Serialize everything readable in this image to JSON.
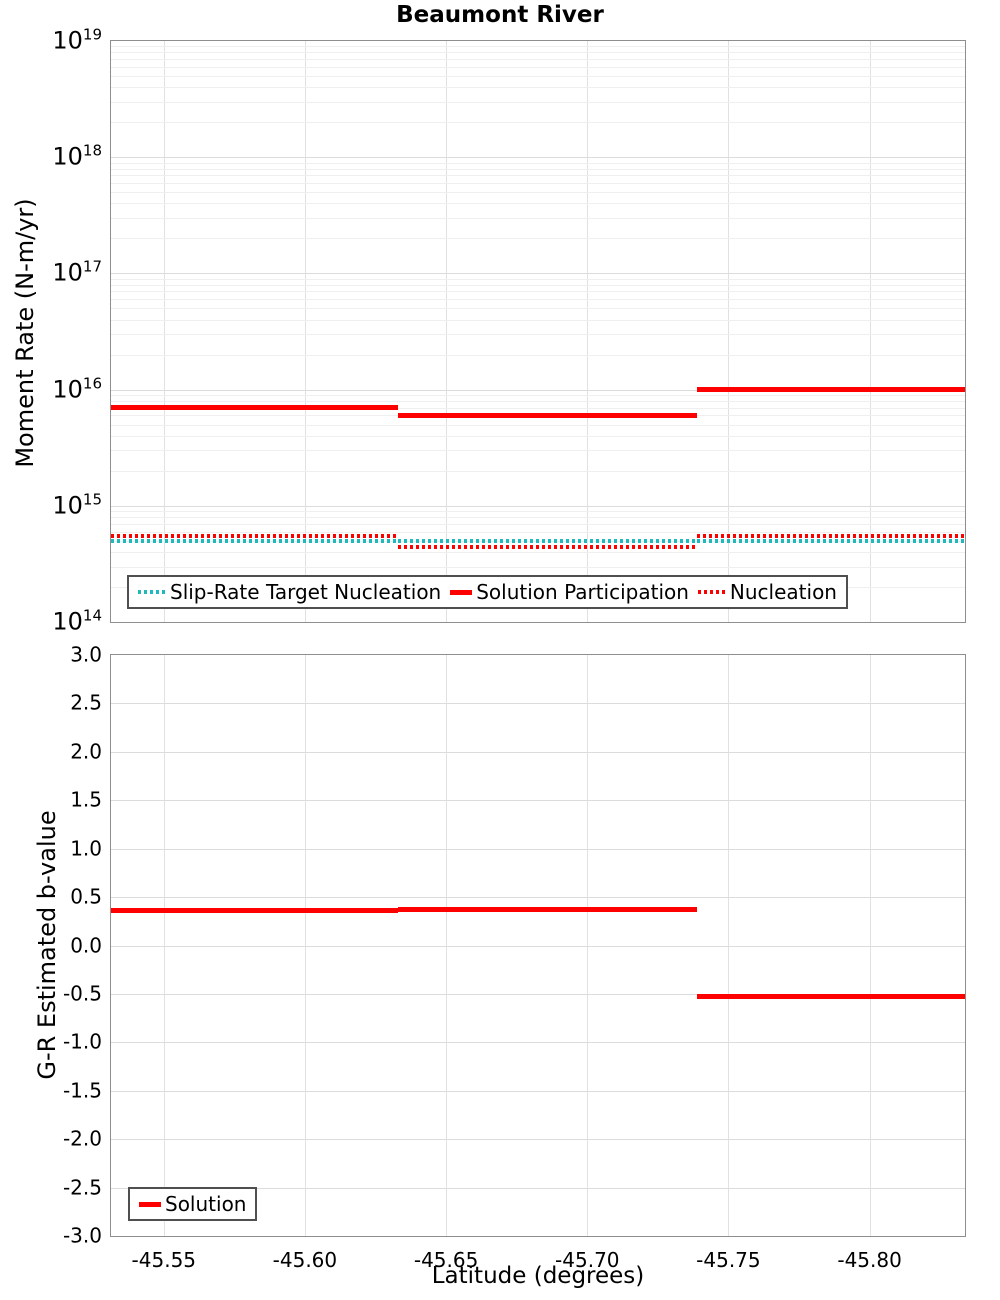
{
  "chart_data": {
    "title": "Beaumont River",
    "type": "line",
    "charts": [
      {
        "id": "moment",
        "ylabel": "Moment Rate (N-m/yr)",
        "yscale": "log",
        "ylim": [
          100000000000000.0,
          1e+19
        ],
        "xlim": [
          -45.5313,
          -45.8338
        ],
        "x_reversed_note": "latitude decreases to the right",
        "grid": true,
        "show_xlabels": false,
        "xticks": [
          {
            "v": -45.55,
            "label": "-45.55"
          },
          {
            "v": -45.6,
            "label": "-45.60"
          },
          {
            "v": -45.65,
            "label": "-45.65"
          },
          {
            "v": -45.7,
            "label": "-45.70"
          },
          {
            "v": -45.75,
            "label": "-45.75"
          },
          {
            "v": -45.8,
            "label": "-45.80"
          }
        ],
        "yticks": [
          {
            "v": 1e+19,
            "base": "10",
            "exp": "19"
          },
          {
            "v": 1e+18,
            "base": "10",
            "exp": "18"
          },
          {
            "v": 1e+17,
            "base": "10",
            "exp": "17"
          },
          {
            "v": 1e+16,
            "base": "10",
            "exp": "16"
          },
          {
            "v": 1000000000000000.0,
            "base": "10",
            "exp": "15"
          },
          {
            "v": 100000000000000.0,
            "base": "10",
            "exp": "14"
          }
        ],
        "series": [
          {
            "name": "Slip-Rate Target Nucleation",
            "color": "#1fb9bd",
            "style": "dotted",
            "segments": [
              [
                -45.5313,
                -45.633,
                500000000000000.0
              ],
              [
                -45.633,
                -45.739,
                500000000000000.0
              ],
              [
                -45.739,
                -45.8338,
                500000000000000.0
              ]
            ]
          },
          {
            "name": "Solution Participation",
            "color": "#ff0000",
            "style": "solid",
            "segments": [
              [
                -45.5313,
                -45.633,
                7000000000000000.0
              ],
              [
                -45.633,
                -45.739,
                6000000000000000.0
              ],
              [
                -45.739,
                -45.8338,
                1e+16
              ]
            ]
          },
          {
            "name": "Nucleation",
            "color": "#ff0000",
            "style": "dotted",
            "segments": [
              [
                -45.5313,
                -45.633,
                550000000000000.0
              ],
              [
                -45.633,
                -45.739,
                440000000000000.0
              ],
              [
                -45.739,
                -45.8338,
                550000000000000.0
              ]
            ]
          }
        ],
        "legend": {
          "position": "bottom-left",
          "items": [
            {
              "name": "Slip-Rate Target Nucleation",
              "color": "#1fb9bd",
              "style": "dotted"
            },
            {
              "name": "Solution Participation",
              "color": "#ff0000",
              "style": "solid"
            },
            {
              "name": "Nucleation",
              "color": "#ff0000",
              "style": "dotted"
            }
          ]
        }
      },
      {
        "id": "bvalue",
        "ylabel": "G-R Estimated b-value",
        "xlabel": "Latitude (degrees)",
        "yscale": "linear",
        "ylim": [
          -3.0,
          3.0
        ],
        "xlim": [
          -45.5313,
          -45.8338
        ],
        "grid": true,
        "show_xlabels": true,
        "ygrid": [
          -2.5,
          -2.0,
          -1.5,
          -1.0,
          -0.5,
          0.0,
          0.5,
          1.0,
          1.5,
          2.0,
          2.5
        ],
        "xticks": [
          {
            "v": -45.55,
            "label": "-45.55"
          },
          {
            "v": -45.6,
            "label": "-45.60"
          },
          {
            "v": -45.65,
            "label": "-45.65"
          },
          {
            "v": -45.7,
            "label": "-45.70"
          },
          {
            "v": -45.75,
            "label": "-45.75"
          },
          {
            "v": -45.8,
            "label": "-45.80"
          }
        ],
        "yticks": [
          {
            "v": 3.0,
            "label": "3.0"
          },
          {
            "v": 2.5,
            "label": "2.5"
          },
          {
            "v": 2.0,
            "label": "2.0"
          },
          {
            "v": 1.5,
            "label": "1.5"
          },
          {
            "v": 1.0,
            "label": "1.0"
          },
          {
            "v": 0.5,
            "label": "0.5"
          },
          {
            "v": 0.0,
            "label": "0.0"
          },
          {
            "v": -0.5,
            "label": "-0.5"
          },
          {
            "v": -1.0,
            "label": "-1.0"
          },
          {
            "v": -1.5,
            "label": "-1.5"
          },
          {
            "v": -2.0,
            "label": "-2.0"
          },
          {
            "v": -2.5,
            "label": "-2.5"
          },
          {
            "v": -3.0,
            "label": "-3.0"
          }
        ],
        "series": [
          {
            "name": "Solution",
            "color": "#ff0000",
            "style": "solid",
            "segments": [
              [
                -45.5313,
                -45.633,
                0.36
              ],
              [
                -45.633,
                -45.739,
                0.37
              ],
              [
                -45.739,
                -45.8338,
                -0.53
              ]
            ]
          }
        ],
        "legend": {
          "position": "bottom-left",
          "items": [
            {
              "name": "Solution",
              "color": "#ff0000",
              "style": "solid"
            }
          ]
        }
      }
    ]
  }
}
